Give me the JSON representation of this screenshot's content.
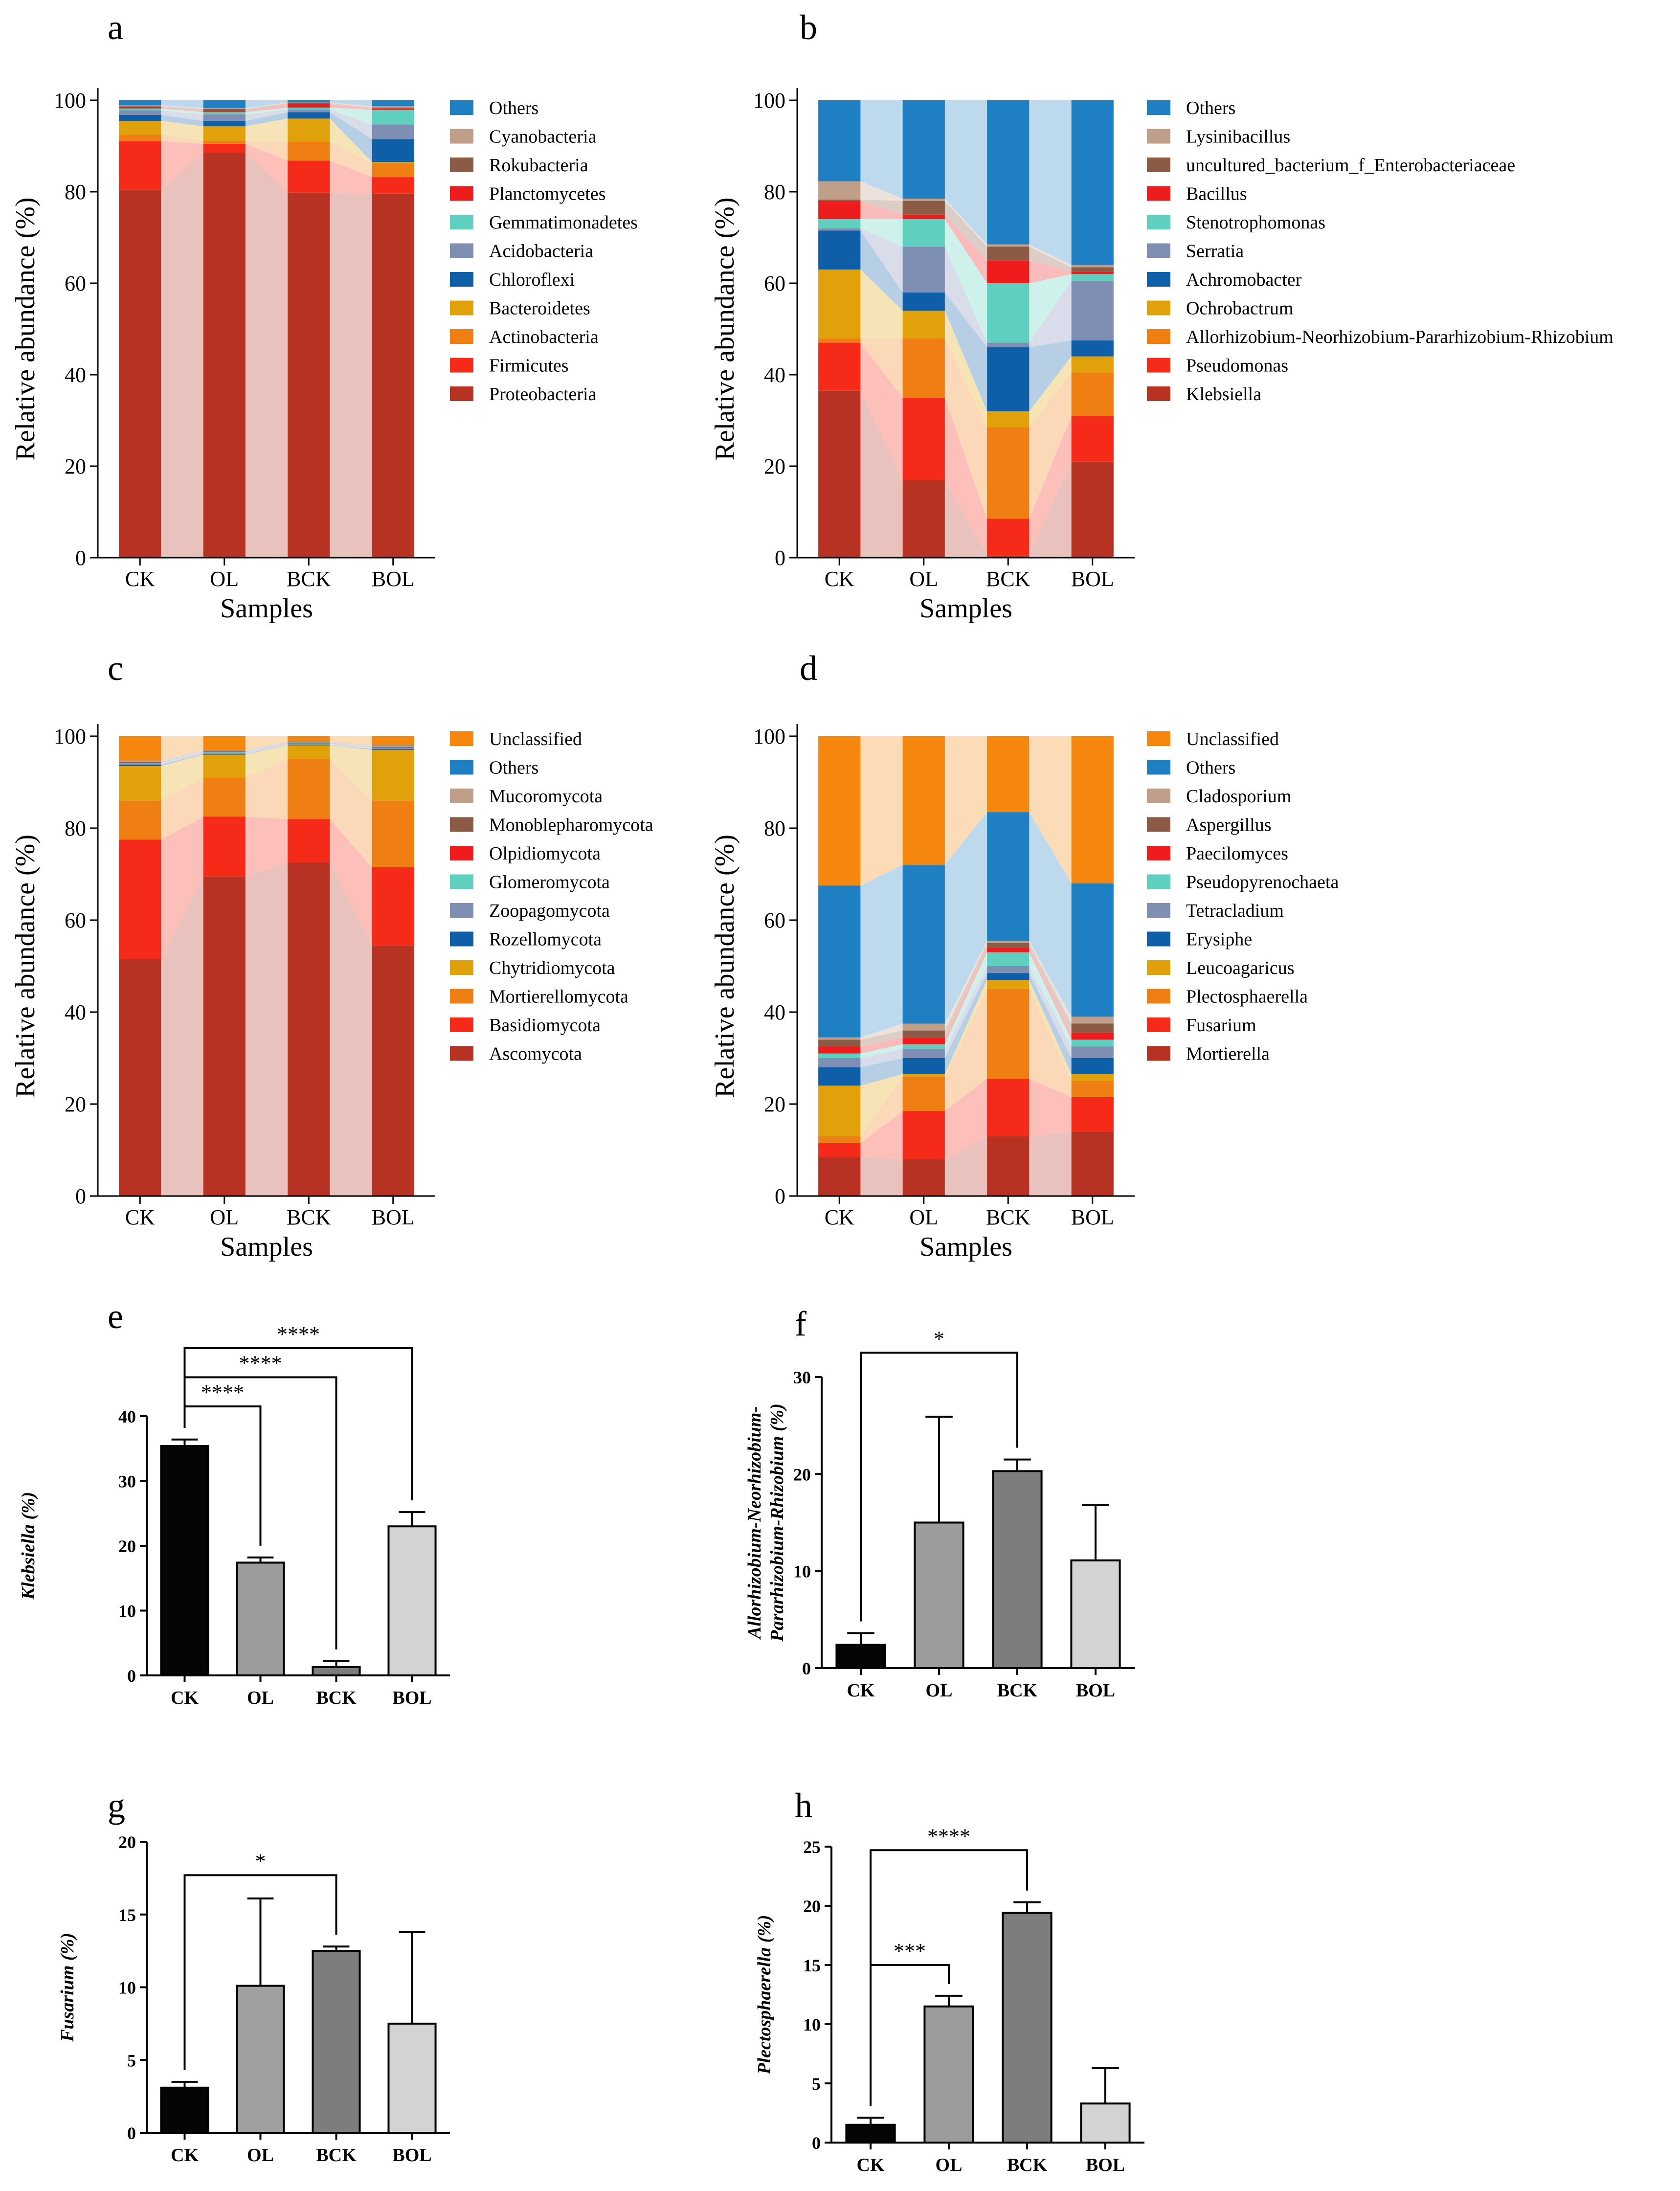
{
  "chart_data": [
    {
      "id": "a",
      "panel": "a",
      "type": "bar",
      "stacked": true,
      "categories": [
        "CK",
        "OL",
        "BCK",
        "BOL"
      ],
      "xlabel": "Samples",
      "ylabel": "Relative abundance (%)",
      "ylim": [
        0,
        100
      ],
      "yticks": [
        "0",
        "20",
        "40",
        "60",
        "80",
        "100"
      ],
      "series": [
        {
          "name": "Proteobacteria",
          "color": "#b83224",
          "values": [
            80.5,
            88.5,
            79.8,
            79.6
          ]
        },
        {
          "name": "Firmicutes",
          "color": "#f52a18",
          "values": [
            10.6,
            2.0,
            7.0,
            3.6
          ]
        },
        {
          "name": "Actinobacteria",
          "color": "#f07f13",
          "values": [
            1.4,
            0.6,
            4.2,
            3.0
          ]
        },
        {
          "name": "Bacteroidetes",
          "color": "#e0a10b",
          "values": [
            3.0,
            3.2,
            5.0,
            0.3
          ]
        },
        {
          "name": "Chloroflexi",
          "color": "#0f5ea8",
          "values": [
            1.3,
            1.2,
            1.4,
            5.0
          ]
        },
        {
          "name": "Acidobacteria",
          "color": "#7f8fb4",
          "values": [
            1.0,
            1.4,
            0.6,
            3.2
          ]
        },
        {
          "name": "Gemmatimonadetes",
          "color": "#5fcfc0",
          "values": [
            0.4,
            0.5,
            0.4,
            3.2
          ]
        },
        {
          "name": "Planctomycetes",
          "color": "#ee1c1c",
          "values": [
            0.3,
            0.2,
            0.8,
            0.3
          ]
        },
        {
          "name": "Rokubacteria",
          "color": "#8b5b45",
          "values": [
            0.2,
            0.5,
            0.2,
            0.2
          ]
        },
        {
          "name": "Cyanobacteria",
          "color": "#bf9f8a",
          "values": [
            0.2,
            0.2,
            0.1,
            0.3
          ]
        },
        {
          "name": "Others",
          "color": "#1f7fc3",
          "values": [
            1.1,
            1.7,
            0.5,
            1.3
          ]
        }
      ]
    },
    {
      "id": "b",
      "panel": "b",
      "type": "bar",
      "stacked": true,
      "categories": [
        "CK",
        "OL",
        "BCK",
        "BOL"
      ],
      "xlabel": "Samples",
      "ylabel": "Relative abundance (%)",
      "ylim": [
        0,
        100
      ],
      "yticks": [
        "0",
        "20",
        "40",
        "60",
        "80",
        "100"
      ],
      "series": [
        {
          "name": "Klebsiella",
          "color": "#b83224",
          "values": [
            36.5,
            17.0,
            0.5,
            21.0
          ]
        },
        {
          "name": "Pseudomonas",
          "color": "#f52a18",
          "values": [
            10.5,
            18.0,
            8.0,
            10.0
          ]
        },
        {
          "name": "Allorhizobium-Neorhizobium-Pararhizobium-Rhizobium",
          "color": "#f07f13",
          "values": [
            1.0,
            13.0,
            20.0,
            9.5
          ]
        },
        {
          "name": "Ochrobactrum",
          "color": "#e0a10b",
          "values": [
            15.0,
            6.0,
            3.5,
            3.5
          ]
        },
        {
          "name": "Achromobacter",
          "color": "#0f5ea8",
          "values": [
            8.5,
            4.0,
            14.0,
            3.5
          ]
        },
        {
          "name": "Serratia",
          "color": "#7f8fb4",
          "values": [
            0.5,
            10.0,
            1.0,
            13.0
          ]
        },
        {
          "name": "Stenotrophomonas",
          "color": "#5fcfc0",
          "values": [
            2.0,
            6.0,
            13.0,
            1.5
          ]
        },
        {
          "name": "Bacillus",
          "color": "#ee1c1c",
          "values": [
            4.0,
            1.0,
            5.0,
            0.5
          ]
        },
        {
          "name": "uncultured_bacterium_f_Enterobacteriaceae",
          "color": "#8b5b45",
          "values": [
            0.3,
            3.0,
            3.0,
            1.0
          ]
        },
        {
          "name": "Lysinibacillus",
          "color": "#bf9f8a",
          "values": [
            4.0,
            0.5,
            0.5,
            0.5
          ]
        },
        {
          "name": "Others",
          "color": "#1f7fc3",
          "values": [
            17.7,
            21.5,
            31.5,
            36.0
          ]
        }
      ]
    },
    {
      "id": "c",
      "panel": "c",
      "type": "bar",
      "stacked": true,
      "categories": [
        "CK",
        "OL",
        "BCK",
        "BOL"
      ],
      "xlabel": "Samples",
      "ylabel": "Relative abundance (%)",
      "ylim": [
        0,
        100
      ],
      "yticks": [
        "0",
        "20",
        "40",
        "60",
        "80",
        "100"
      ],
      "series": [
        {
          "name": "Ascomycota",
          "color": "#b83224",
          "values": [
            51.5,
            69.5,
            72.5,
            54.5
          ]
        },
        {
          "name": "Basidiomycota",
          "color": "#f52a18",
          "values": [
            26.0,
            13.0,
            9.5,
            17.0
          ]
        },
        {
          "name": "Mortierellomycota",
          "color": "#f07f13",
          "values": [
            8.5,
            8.5,
            13.0,
            14.5
          ]
        },
        {
          "name": "Chytridiomycota",
          "color": "#e0a10b",
          "values": [
            7.5,
            5.0,
            3.0,
            11.0
          ]
        },
        {
          "name": "Rozellomycota",
          "color": "#0f5ea8",
          "values": [
            0.3,
            0.2,
            0.1,
            0.2
          ]
        },
        {
          "name": "Zoopagomycota",
          "color": "#7f8fb4",
          "values": [
            0.3,
            0.2,
            0.2,
            0.2
          ]
        },
        {
          "name": "Glomeromycota",
          "color": "#5fcfc0",
          "values": [
            0.1,
            0.1,
            0.1,
            0.1
          ]
        },
        {
          "name": "Olpidiomycota",
          "color": "#ee1c1c",
          "values": [
            0.1,
            0.1,
            0.1,
            0.1
          ]
        },
        {
          "name": "Monoblepharomycota",
          "color": "#8b5b45",
          "values": [
            0.1,
            0.1,
            0.1,
            0.1
          ]
        },
        {
          "name": "Mucoromycota",
          "color": "#bf9f8a",
          "values": [
            0.2,
            0.2,
            0.1,
            0.2
          ]
        },
        {
          "name": "Others",
          "color": "#1f7fc3",
          "values": [
            0.1,
            0.1,
            0.1,
            0.1
          ]
        },
        {
          "name": "Unclassified",
          "color": "#f5870f",
          "values": [
            5.3,
            3.0,
            1.2,
            2.0
          ]
        }
      ]
    },
    {
      "id": "d",
      "panel": "d",
      "type": "bar",
      "stacked": true,
      "categories": [
        "CK",
        "OL",
        "BCK",
        "BOL"
      ],
      "xlabel": "Samples",
      "ylabel": "Relative abundance (%)",
      "ylim": [
        0,
        100
      ],
      "yticks": [
        "0",
        "20",
        "40",
        "60",
        "80",
        "100"
      ],
      "series": [
        {
          "name": "Mortierella",
          "color": "#b83224",
          "values": [
            8.5,
            8.0,
            13.0,
            14.0
          ]
        },
        {
          "name": "Fusarium",
          "color": "#f52a18",
          "values": [
            3.0,
            10.5,
            12.5,
            7.5
          ]
        },
        {
          "name": "Plectosphaerella",
          "color": "#f07f13",
          "values": [
            1.5,
            7.5,
            19.5,
            3.5
          ]
        },
        {
          "name": "Leucoagaricus",
          "color": "#e0a10b",
          "values": [
            11.0,
            0.5,
            2.0,
            1.5
          ]
        },
        {
          "name": "Erysiphe",
          "color": "#0f5ea8",
          "values": [
            4.0,
            3.5,
            1.5,
            3.5
          ]
        },
        {
          "name": "Tetracladium",
          "color": "#7f8fb4",
          "values": [
            2.0,
            2.0,
            1.5,
            2.5
          ]
        },
        {
          "name": "Pseudopyrenochaeta",
          "color": "#5fcfc0",
          "values": [
            1.0,
            1.0,
            3.0,
            1.5
          ]
        },
        {
          "name": "Paecilomyces",
          "color": "#ee1c1c",
          "values": [
            1.5,
            1.5,
            1.0,
            1.5
          ]
        },
        {
          "name": "Aspergillus",
          "color": "#8b5b45",
          "values": [
            1.5,
            1.5,
            1.0,
            2.0
          ]
        },
        {
          "name": "Cladosporium",
          "color": "#bf9f8a",
          "values": [
            0.5,
            1.5,
            0.5,
            1.5
          ]
        },
        {
          "name": "Others",
          "color": "#1f7fc3",
          "values": [
            33.0,
            34.5,
            28.0,
            29.0
          ]
        },
        {
          "name": "Unclassified",
          "color": "#f5870f",
          "values": [
            32.5,
            28.0,
            16.5,
            32.0
          ]
        }
      ]
    },
    {
      "id": "e",
      "panel": "e",
      "type": "bar",
      "stacked": false,
      "categories": [
        "CK",
        "OL",
        "BCK",
        "BOL"
      ],
      "ylabel": "Klebsiella (%)",
      "ylim": [
        0,
        40
      ],
      "yticks": [
        "0",
        "10",
        "20",
        "30",
        "40"
      ],
      "values": [
        35.4,
        17.4,
        1.3,
        23.0
      ],
      "errors": [
        1.0,
        0.8,
        0.9,
        2.2
      ],
      "colors": [
        "#050505",
        "#9c9c9c",
        "#7d7d7d",
        "#d3d3d3"
      ],
      "significance": [
        {
          "from": 0,
          "to": 1,
          "label": "****",
          "level": 41.5
        },
        {
          "from": 0,
          "to": 2,
          "label": "****",
          "level": 46.0
        },
        {
          "from": 0,
          "to": 3,
          "label": "****",
          "level": 50.5
        }
      ]
    },
    {
      "id": "f",
      "panel": "f",
      "type": "bar",
      "stacked": false,
      "categories": [
        "CK",
        "OL",
        "BCK",
        "BOL"
      ],
      "ylabel": "Allorhizobium-Neorhizobium-Pararhizobium-Rhizobium (%)",
      "ylim": [
        0,
        30
      ],
      "yticks": [
        "0",
        "10",
        "20",
        "30"
      ],
      "values": [
        2.4,
        15.0,
        20.3,
        11.1
      ],
      "errors": [
        1.2,
        10.9,
        1.2,
        5.7
      ],
      "colors": [
        "#050505",
        "#9c9c9c",
        "#7d7d7d",
        "#d3d3d3"
      ],
      "significance": [
        {
          "from": 0,
          "to": 2,
          "label": "*",
          "level": 32.5
        }
      ]
    },
    {
      "id": "g",
      "panel": "g",
      "type": "bar",
      "stacked": false,
      "categories": [
        "CK",
        "OL",
        "BCK",
        "BOL"
      ],
      "ylabel": "Fusarium (%)",
      "ylim": [
        0,
        20
      ],
      "yticks": [
        "0",
        "5",
        "10",
        "15",
        "20"
      ],
      "values": [
        3.1,
        10.1,
        12.5,
        7.5
      ],
      "errors": [
        0.4,
        6.0,
        0.3,
        6.3
      ],
      "colors": [
        "#050505",
        "#a0a0a0",
        "#7d7d7d",
        "#d3d3d3"
      ],
      "significance": [
        {
          "from": 0,
          "to": 2,
          "label": "*",
          "level": 17.7
        }
      ]
    },
    {
      "id": "h",
      "panel": "h",
      "type": "bar",
      "stacked": false,
      "categories": [
        "CK",
        "OL",
        "BCK",
        "BOL"
      ],
      "ylabel": "Plectosphaerella (%)",
      "ylim": [
        0,
        25
      ],
      "yticks": [
        "0",
        "5",
        "10",
        "15",
        "20",
        "25"
      ],
      "values": [
        1.5,
        11.5,
        19.4,
        3.3
      ],
      "errors": [
        0.6,
        0.9,
        0.9,
        3.0
      ],
      "colors": [
        "#050505",
        "#9c9c9c",
        "#7d7d7d",
        "#d3d3d3"
      ],
      "significance": [
        {
          "from": 0,
          "to": 1,
          "label": "***",
          "level": 15.0
        },
        {
          "from": 0,
          "to": 2,
          "label": "****",
          "level": 24.7
        }
      ]
    }
  ]
}
